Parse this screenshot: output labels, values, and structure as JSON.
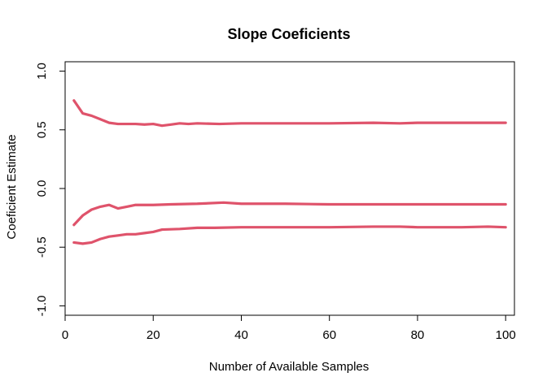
{
  "chart_data": {
    "type": "line",
    "title": "Slope Coeficients",
    "xlabel": "Number of Available Samples",
    "ylabel": "Coeficient Estimate",
    "xlim": [
      0,
      102
    ],
    "ylim": [
      -1.08,
      1.08
    ],
    "xticks": [
      0,
      20,
      40,
      60,
      80,
      100
    ],
    "yticks": [
      -1.0,
      -0.5,
      0.0,
      0.5,
      1.0
    ],
    "ytick_labels": [
      "-1.0",
      "-0.5",
      "0.0",
      "0.5",
      "1.0"
    ],
    "grid": false,
    "legend": "none",
    "line_color": "#DF536B",
    "series": [
      {
        "x": [
          2,
          4,
          6,
          8,
          10,
          12,
          14,
          16,
          18,
          20,
          22,
          24,
          26,
          28,
          30,
          35,
          40,
          50,
          60,
          70,
          76,
          80,
          90,
          100
        ],
        "values": [
          0.75,
          0.64,
          0.62,
          0.59,
          0.56,
          0.55,
          0.55,
          0.55,
          0.545,
          0.55,
          0.535,
          0.545,
          0.555,
          0.55,
          0.555,
          0.55,
          0.555,
          0.555,
          0.555,
          0.56,
          0.555,
          0.56,
          0.56,
          0.56
        ]
      },
      {
        "x": [
          2,
          4,
          6,
          8,
          10,
          12,
          14,
          16,
          18,
          20,
          24,
          30,
          36,
          40,
          50,
          60,
          70,
          80,
          90,
          100
        ],
        "values": [
          -0.31,
          -0.23,
          -0.18,
          -0.155,
          -0.14,
          -0.17,
          -0.155,
          -0.14,
          -0.14,
          -0.14,
          -0.135,
          -0.13,
          -0.12,
          -0.13,
          -0.13,
          -0.135,
          -0.135,
          -0.135,
          -0.135,
          -0.135
        ]
      },
      {
        "x": [
          2,
          4,
          6,
          8,
          10,
          12,
          14,
          16,
          18,
          20,
          22,
          26,
          30,
          34,
          40,
          50,
          60,
          70,
          76,
          80,
          90,
          96,
          100
        ],
        "values": [
          -0.46,
          -0.47,
          -0.46,
          -0.43,
          -0.41,
          -0.4,
          -0.39,
          -0.39,
          -0.38,
          -0.37,
          -0.35,
          -0.345,
          -0.335,
          -0.335,
          -0.33,
          -0.33,
          -0.33,
          -0.325,
          -0.325,
          -0.33,
          -0.33,
          -0.325,
          -0.33
        ]
      }
    ]
  }
}
